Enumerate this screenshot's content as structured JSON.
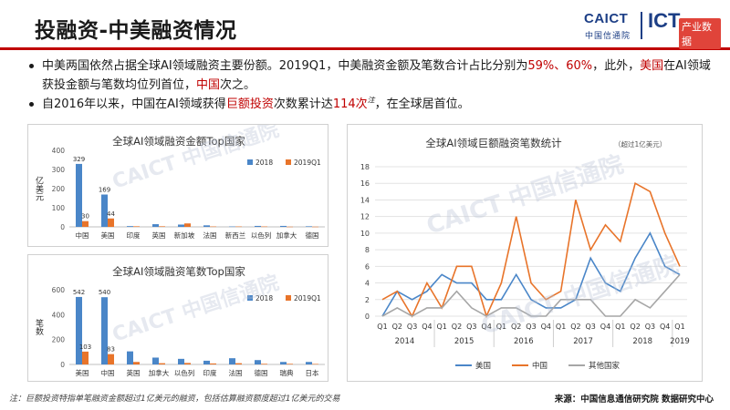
{
  "header": {
    "title": "投融资-中美融资情况",
    "logo_caict": "CAICT",
    "logo_cn": "中国信通院",
    "logo_ict": "ICT",
    "logo_sub": "产业数据"
  },
  "bullets": [
    {
      "p1": "中美两国依然占据全球AI领域融资主要份额。2019Q1，中美融资金额及笔数合计占比分别为",
      "r1": "59%、60%",
      "p2": "，此外，",
      "r2": "美国",
      "p3": "在AI领域获投金额与笔数均位列首位，",
      "r3": "中国",
      "p4": "次之。"
    },
    {
      "p1": "自2016年以来，中国在AI领域获得",
      "r1": "巨额投资",
      "p2": "次数累计达",
      "r2": "114次",
      "note": "注",
      "p3": "，在全球居首位。"
    }
  ],
  "footer": {
    "note": "注：巨额投资特指单笔融资金额超过1亿美元的融资，包括估算融资额度超过1亿美元的交易",
    "source": "来源：中国信息通信研究院 数据研究中心"
  },
  "watermark": "CAICT 中国信通院",
  "colors": {
    "blue": "#4a86c8",
    "orange": "#e8742a",
    "grey": "#a6a6a6",
    "red": "#c00000",
    "brand": "#1d3f86"
  },
  "chart_data": [
    {
      "type": "bar",
      "title": "全球AI领域融资金额Top国家",
      "ylabel": "亿美元",
      "ylim": [
        0,
        400
      ],
      "yticks": [
        0,
        100,
        200,
        300,
        400
      ],
      "categories": [
        "中国",
        "美国",
        "印度",
        "英国",
        "新加坡",
        "法国",
        "新西兰",
        "以色列",
        "加拿大",
        "德国"
      ],
      "series": [
        {
          "name": "2018",
          "values": [
            329,
            169,
            4,
            14,
            12,
            8,
            2,
            5,
            5,
            3
          ]
        },
        {
          "name": "2019Q1",
          "values": [
            30,
            44,
            3,
            3,
            18,
            2,
            2,
            2,
            1,
            1
          ]
        }
      ],
      "labels": {
        "0": [
          "329",
          "30"
        ],
        "1": [
          "169",
          "44"
        ]
      },
      "legend": "top-right",
      "grid": false
    },
    {
      "type": "bar",
      "title": "全球AI领域融资笔数Top国家",
      "ylabel": "笔数",
      "ylim": [
        0,
        600
      ],
      "yticks": [
        0,
        200,
        400,
        600
      ],
      "categories": [
        "美国",
        "中国",
        "英国",
        "加拿大",
        "以色列",
        "印度",
        "法国",
        "德国",
        "瑞典",
        "日本"
      ],
      "series": [
        {
          "name": "2018",
          "values": [
            542,
            540,
            105,
            55,
            45,
            30,
            50,
            35,
            20,
            20
          ]
        },
        {
          "name": "2019Q1",
          "values": [
            103,
            83,
            20,
            10,
            12,
            8,
            10,
            5,
            5,
            4
          ]
        }
      ],
      "labels": {
        "0": [
          "542",
          "103"
        ],
        "1": [
          "540",
          "83"
        ]
      },
      "legend": "top-right",
      "grid": false
    },
    {
      "type": "line",
      "title": "全球AI领域巨额融资笔数统计",
      "subtitle": "（超过1亿美元）",
      "ylim": [
        0,
        18
      ],
      "yticks": [
        0,
        2,
        4,
        6,
        8,
        10,
        12,
        14,
        16,
        18
      ],
      "x": [
        "Q1",
        "Q2",
        "Q3",
        "Q4",
        "Q1",
        "Q2",
        "Q3",
        "Q4",
        "Q1",
        "Q2",
        "Q3",
        "Q4",
        "Q1",
        "Q2",
        "Q3",
        "Q4",
        "Q1",
        "Q2",
        "Q3",
        "Q4",
        "Q1"
      ],
      "years": [
        {
          "label": "2014",
          "start": 0,
          "end": 3
        },
        {
          "label": "2015",
          "start": 4,
          "end": 7
        },
        {
          "label": "2016",
          "start": 8,
          "end": 11
        },
        {
          "label": "2017",
          "start": 12,
          "end": 15
        },
        {
          "label": "2018",
          "start": 16,
          "end": 19
        },
        {
          "label": "2019",
          "start": 20,
          "end": 20
        }
      ],
      "series": [
        {
          "name": "美国",
          "values": [
            0,
            3,
            2,
            3,
            5,
            4,
            4,
            2,
            2,
            5,
            2,
            1,
            1,
            2,
            7,
            4,
            3,
            7,
            10,
            6,
            5
          ]
        },
        {
          "name": "中国",
          "values": [
            2,
            3,
            0,
            4,
            1,
            6,
            6,
            0,
            4,
            12,
            4,
            2,
            3,
            14,
            8,
            11,
            9,
            16,
            15,
            10,
            6
          ]
        },
        {
          "name": "其他国家",
          "values": [
            0,
            1,
            0,
            1,
            1,
            3,
            1,
            0,
            1,
            1,
            0,
            0,
            2,
            2,
            2,
            0,
            0,
            2,
            1,
            3,
            5
          ]
        }
      ],
      "legend": "bottom",
      "grid": true
    }
  ]
}
